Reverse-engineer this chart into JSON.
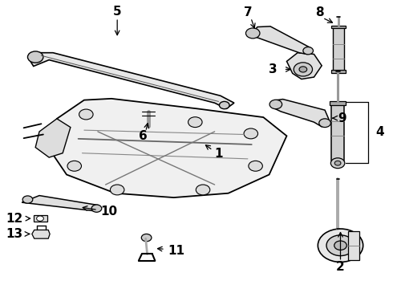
{
  "bg_color": "#ffffff",
  "fig_width": 4.9,
  "fig_height": 3.6,
  "dpi": 100,
  "line_color": "#000000",
  "line_width": 1.0
}
